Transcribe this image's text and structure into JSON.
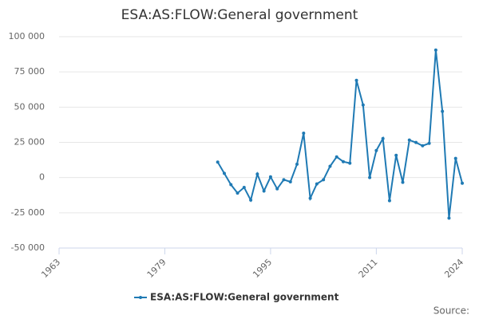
{
  "chart_data": {
    "type": "line",
    "title": "ESA:AS:FLOW:General government",
    "x": [
      1987,
      1988,
      1989,
      1990,
      1991,
      1992,
      1993,
      1994,
      1995,
      1996,
      1997,
      1998,
      1999,
      2000,
      2001,
      2002,
      2003,
      2004,
      2005,
      2006,
      2007,
      2008,
      2009,
      2010,
      2011,
      2012,
      2013,
      2014,
      2015,
      2016,
      2017,
      2018,
      2019,
      2020,
      2021,
      2022,
      2023,
      2024
    ],
    "series": [
      {
        "name": "ESA:AS:FLOW:General government",
        "color": "#1f7ab4",
        "values": [
          11000,
          3000,
          -5000,
          -11000,
          -7000,
          -16000,
          2500,
          -9500,
          500,
          -8000,
          -1500,
          -3000,
          9500,
          31500,
          -14700,
          -4500,
          -1500,
          8000,
          14700,
          11300,
          10200,
          69000,
          51500,
          0,
          19200,
          27700,
          -16400,
          15800,
          -3400,
          26600,
          24900,
          22600,
          24300,
          90500,
          47000,
          -28800,
          13600,
          -4000
        ]
      }
    ],
    "xlim": [
      1963,
      2024
    ],
    "xticks": [
      1963,
      1979,
      1995,
      2011,
      2024
    ],
    "ylim": [
      -50000,
      100000
    ],
    "yticks": [
      {
        "value": -50000,
        "label": "-50 000"
      },
      {
        "value": -25000,
        "label": "-25 000"
      },
      0,
      {
        "value": 25000,
        "label": "25 000"
      },
      {
        "value": 50000,
        "label": "50 000"
      },
      {
        "value": 75000,
        "label": "75 000"
      },
      {
        "value": 100000,
        "label": "100 000"
      }
    ],
    "grid": true,
    "legend": "bottom",
    "source": "Source:"
  }
}
